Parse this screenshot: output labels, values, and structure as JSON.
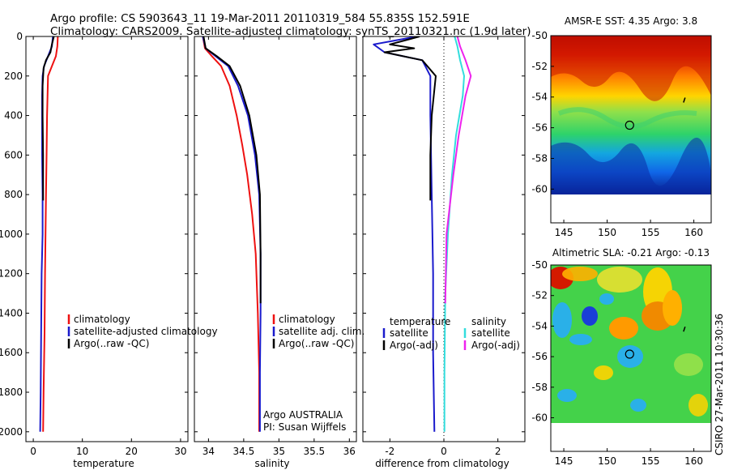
{
  "header": {
    "line1": "Argo profile: CS 5903643_11 19-Mar-2011 20110319_584 55.835S 152.591E",
    "line2": "Climatology: CARS2009. Satellite-adjusted climatology: synTS_20110321.nc (1.9d later)"
  },
  "colors": {
    "climatology": "#ee1111",
    "satellite": "#1a1acc",
    "argo": "#000000",
    "satellite_salinity": "#33dddd",
    "argo_salinity_diff": "#ee22ee"
  },
  "chart_data": [
    {
      "type": "line",
      "panel": "temperature",
      "xlabel": "temperature",
      "ylabel": "",
      "xlim": [
        -1.5,
        31.5
      ],
      "ylim": [
        2050,
        0
      ],
      "xticks": [
        0,
        10,
        20,
        30
      ],
      "yticks": [
        0,
        200,
        400,
        600,
        800,
        1000,
        1200,
        1400,
        1600,
        1800,
        2000
      ],
      "legend": [
        "climatology",
        "satellite-adjusted climatology",
        "Argo(..raw -QC)"
      ],
      "series": [
        {
          "name": "climatology",
          "color": "#ee1111",
          "x": [
            5.0,
            4.9,
            4.6,
            3.8,
            3.0,
            2.9,
            2.8,
            2.7,
            2.6,
            2.5,
            2.4,
            2.3,
            2.1,
            2.0
          ],
          "y": [
            0,
            50,
            100,
            150,
            200,
            300,
            400,
            600,
            800,
            1000,
            1200,
            1500,
            1800,
            2000
          ]
        },
        {
          "name": "satellite-adjusted climatology",
          "color": "#1a1acc",
          "x": [
            4.0,
            3.8,
            3.0,
            2.2,
            1.9,
            1.8,
            1.8,
            1.8,
            1.9,
            1.9,
            1.7,
            1.6,
            1.5,
            1.4
          ],
          "y": [
            0,
            50,
            100,
            150,
            200,
            300,
            400,
            600,
            800,
            1000,
            1200,
            1500,
            1800,
            2000
          ]
        },
        {
          "name": "Argo(..raw -QC)",
          "color": "#000000",
          "x": [
            4.2,
            3.8,
            3.5,
            2.6,
            2.1,
            1.9,
            1.9,
            2.0,
            2.0
          ],
          "y": [
            0,
            40,
            80,
            120,
            160,
            250,
            400,
            600,
            830
          ]
        }
      ]
    },
    {
      "type": "line",
      "panel": "salinity",
      "xlabel": "salinity",
      "ylabel": "",
      "xlim": [
        33.8,
        36.1
      ],
      "ylim": [
        2050,
        0
      ],
      "xticks": [
        34,
        34.5,
        35,
        35.5,
        36
      ],
      "yticks": [
        0,
        200,
        400,
        600,
        800,
        1000,
        1200,
        1400,
        1600,
        1800,
        2000
      ],
      "legend": [
        "climatology",
        "satellite adj. clim.",
        "Argo(..raw -QC)"
      ],
      "series": [
        {
          "name": "climatology",
          "color": "#ee1111",
          "x": [
            33.92,
            33.95,
            34.05,
            34.18,
            34.3,
            34.4,
            34.48,
            34.55,
            34.62,
            34.67,
            34.7,
            34.72,
            34.72
          ],
          "y": [
            0,
            60,
            100,
            150,
            250,
            400,
            550,
            700,
            900,
            1100,
            1400,
            1700,
            2000
          ]
        },
        {
          "name": "satellite adj. clim.",
          "color": "#1a1acc",
          "x": [
            33.92,
            33.96,
            34.1,
            34.28,
            34.42,
            34.56,
            34.66,
            34.72,
            34.74,
            34.74,
            34.73,
            34.73
          ],
          "y": [
            0,
            60,
            100,
            150,
            250,
            400,
            600,
            800,
            1100,
            1400,
            1700,
            2000
          ]
        },
        {
          "name": "Argo(..raw -QC)",
          "color": "#000000",
          "x": [
            33.93,
            33.96,
            34.12,
            34.3,
            34.45,
            34.58,
            34.68,
            34.73,
            34.74,
            34.74
          ],
          "y": [
            0,
            60,
            100,
            150,
            250,
            400,
            600,
            800,
            1100,
            1350
          ]
        }
      ],
      "annotation": [
        "Argo AUSTRALIA",
        "PI: Susan Wijffels"
      ]
    },
    {
      "type": "line",
      "panel": "difference",
      "xlabel": "difference from climatology",
      "ylabel": "",
      "xlim": [
        -3.0,
        3.0
      ],
      "ylim": [
        2050,
        0
      ],
      "xticks": [
        -2,
        0,
        2
      ],
      "yticks": [
        0,
        200,
        400,
        600,
        800,
        1000,
        1200,
        1400,
        1600,
        1800,
        2000
      ],
      "legend_groups": [
        {
          "title": "temperature",
          "items": [
            "satellite",
            "Argo(-adj)"
          ]
        },
        {
          "title": "salinity",
          "items": [
            "satellite",
            "Argo(-adj)"
          ]
        }
      ],
      "series": [
        {
          "name": "temperature satellite",
          "color": "#1a1acc",
          "x": [
            -1.0,
            -2.6,
            -2.2,
            -0.8,
            -0.5,
            -0.5,
            -0.45,
            -0.4,
            -0.4,
            -0.35
          ],
          "y": [
            0,
            40,
            80,
            120,
            200,
            400,
            800,
            1200,
            1600,
            2000
          ]
        },
        {
          "name": "temperature Argo(-adj)",
          "color": "#000000",
          "x": [
            -0.9,
            -2.0,
            -1.1,
            -2.2,
            -0.8,
            -0.3,
            -0.45,
            -0.5,
            -0.5
          ],
          "y": [
            0,
            40,
            60,
            80,
            120,
            200,
            400,
            600,
            830
          ]
        },
        {
          "name": "salinity satellite",
          "color": "#33dddd",
          "x": [
            0.4,
            0.5,
            0.6,
            0.75,
            0.7,
            0.45,
            0.3,
            0.15,
            0.05,
            0.02,
            0.02
          ],
          "y": [
            0,
            50,
            120,
            200,
            300,
            500,
            700,
            1000,
            1300,
            1700,
            2000
          ]
        },
        {
          "name": "salinity Argo(-adj)",
          "color": "#ee22ee",
          "x": [
            0.5,
            0.6,
            0.8,
            1.0,
            0.8,
            0.55,
            0.35,
            0.1,
            0.05
          ],
          "y": [
            0,
            50,
            120,
            200,
            300,
            500,
            700,
            1000,
            1350
          ]
        }
      ]
    },
    {
      "type": "heatmap",
      "panel": "amsr-e-sst",
      "title": "AMSR-E SST: 4.35 Argo: 3.8",
      "xlim": [
        143.5,
        162
      ],
      "ylim": [
        -60,
        -50
      ],
      "map_ylim": [
        -62.2,
        -50
      ],
      "xticks": [
        145,
        150,
        155,
        160
      ],
      "yticks": [
        -50,
        -52,
        -54,
        -56,
        -58,
        -60
      ],
      "marker": {
        "lon": 152.591,
        "lat": -55.835
      },
      "float_track": {
        "lon": 158.9,
        "lat": -54.2
      }
    },
    {
      "type": "heatmap",
      "panel": "altimetric-sla",
      "title": "Altimetric SLA: -0.21 Argo: -0.13",
      "xlim": [
        143.5,
        162
      ],
      "ylim": [
        -60,
        -50
      ],
      "map_ylim": [
        -62.2,
        -50
      ],
      "xticks": [
        145,
        150,
        155,
        160
      ],
      "yticks": [
        -50,
        -52,
        -54,
        -56,
        -58,
        -60
      ],
      "marker": {
        "lon": 152.591,
        "lat": -55.835
      },
      "float_track": {
        "lon": 158.9,
        "lat": -54.2
      }
    }
  ],
  "side_label": "CSIRO 27-Mar-2011 10:30:36"
}
